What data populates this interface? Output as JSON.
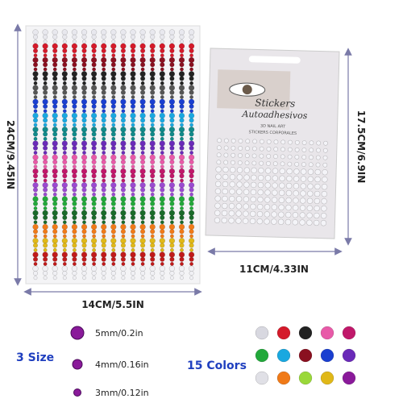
{
  "sheet": {
    "height_label": "24CM/9.45IN",
    "width_label": "14CM/5.5IN"
  },
  "package": {
    "title": "Stickers",
    "subtitle": "Autoadhesivos",
    "line1": "3D NAIL ART",
    "line2": "STICKERS CORPORALES",
    "height_label": "17.5CM/6.9IN",
    "width_label": "11CM/4.33IN"
  },
  "sizes": {
    "heading": "3 Size",
    "items": [
      "5mm/0.2in",
      "4mm/0.16in",
      "3mm/0.12in"
    ]
  },
  "colors": {
    "heading": "15 Colors"
  }
}
